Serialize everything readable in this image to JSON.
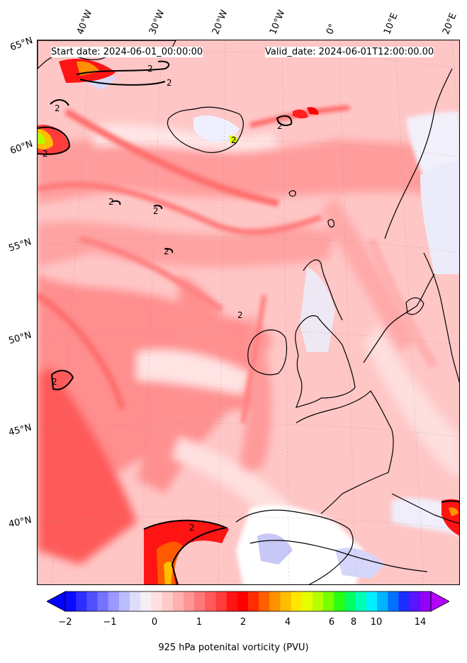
{
  "header": {
    "start_date": "Start date: 2024-06-01_00:00:00",
    "valid_date": "Valid_date: 2024-06-01T12:00:00.00"
  },
  "lon_labels": [
    "40°W",
    "30°W",
    "20°W",
    "10°W",
    "0°",
    "10°E",
    "20°E"
  ],
  "lat_labels": [
    "65°N",
    "60°N",
    "55°N",
    "50°N",
    "45°N",
    "40°N"
  ],
  "contour_labels": [
    "2",
    "2",
    "2",
    "2",
    "2",
    "2",
    "2",
    "2",
    "2",
    "2",
    "2",
    "2"
  ],
  "colorbar": {
    "label": "925 hPa potenital vorticity (PVU)",
    "ticks": [
      "−2",
      "−1",
      "0",
      "1",
      "2",
      "4",
      "6",
      "8",
      "10",
      "14"
    ],
    "colors": [
      "#0a0aff",
      "#2d2dff",
      "#5050ff",
      "#7373ff",
      "#9999ff",
      "#bbbbff",
      "#ddddfb",
      "#f6f0f6",
      "#ffe0e0",
      "#ffcaca",
      "#ffb0b0",
      "#ff9696",
      "#ff7878",
      "#ff5a5a",
      "#ff3c3c",
      "#ff1414",
      "#ff0000",
      "#ff2d00",
      "#ff6000",
      "#ff9100",
      "#ffbe00",
      "#ffe600",
      "#e6ff00",
      "#b4ff00",
      "#78ff00",
      "#28ff14",
      "#00ff64",
      "#00ffb4",
      "#00f0ff",
      "#00b4ff",
      "#0070ff",
      "#1e2dff",
      "#5a14ff",
      "#9600ff"
    ],
    "under_color": "#0000ff",
    "over_color": "#b400ff"
  }
}
